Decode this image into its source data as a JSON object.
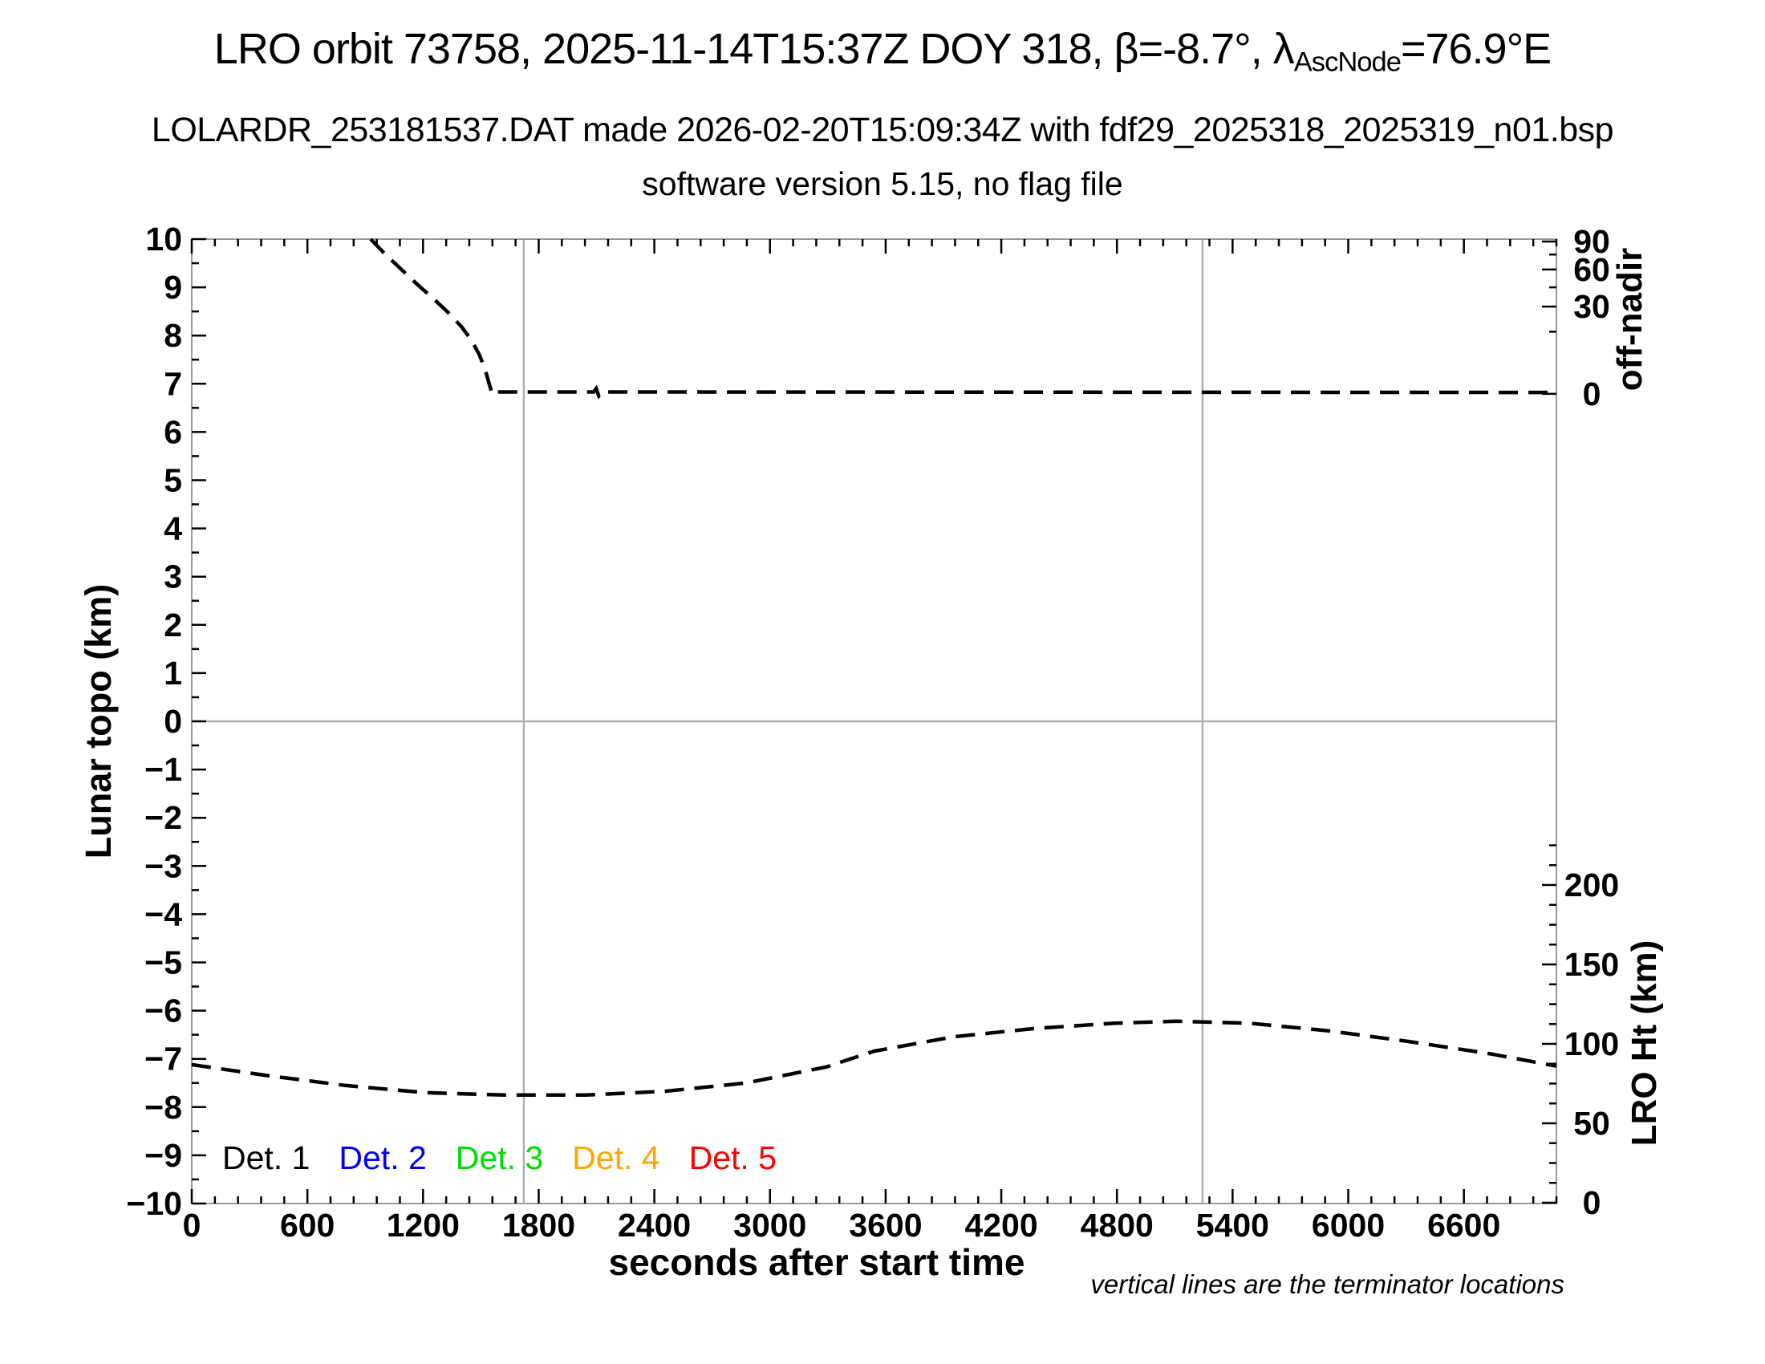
{
  "meta": {
    "title_prefix": "LRO orbit 73758, 2025-11-14T15:37Z DOY 318, β=-8.7°, λ",
    "title_subscript": "AscNode",
    "title_suffix": "=76.9°E",
    "subtitle1": "LOLARDR_253181537.DAT made 2026-02-20T15:09:34Z with fdf29_2025318_2025319_n01.bsp",
    "subtitle2": "software version 5.15, no flag file",
    "footnote": "vertical lines are the terminator locations"
  },
  "legend": {
    "items": [
      {
        "label": "Det. 1",
        "color": "#000000"
      },
      {
        "label": "Det. 2",
        "color": "#0000ff"
      },
      {
        "label": "Det. 3",
        "color": "#00dd00"
      },
      {
        "label": "Det. 4",
        "color": "#ffa500"
      },
      {
        "label": "Det. 5",
        "color": "#ff0000"
      }
    ]
  },
  "chart_data": {
    "type": "line",
    "title": "LRO orbit 73758, 2025-11-14T15:37Z DOY 318, β=-8.7°, λAscNode=76.9°E",
    "subtitle": "LOLARDR_253181537.DAT made 2026-02-20T15:09:34Z with fdf29_2025318_2025319_n01.bsp",
    "subtitle2": "software version 5.15, no flag file",
    "grid": "off",
    "line_color": "#000000",
    "line_style": "dashed",
    "feature_line_color": "#b0b0b0",
    "x_axis": {
      "label": "seconds after start time",
      "range": [
        0,
        7080
      ],
      "major_tick_step": 600,
      "minor_tick_step": 120,
      "tick_values": [
        0,
        600,
        1200,
        1800,
        2400,
        3000,
        3600,
        4200,
        4800,
        5400,
        6000,
        6600
      ],
      "tick_labels": [
        "0",
        "600",
        "1200",
        "1800",
        "2400",
        "3000",
        "3600",
        "4200",
        "4800",
        "5400",
        "6000",
        "6600"
      ]
    },
    "y_left": {
      "label": "Lunar topo (km)",
      "range": [
        -10,
        10
      ],
      "major_tick_step": 1,
      "minor_tick_step": 0.5,
      "tick_values": [
        10,
        9,
        8,
        7,
        6,
        5,
        4,
        3,
        2,
        1,
        0,
        -1,
        -2,
        -3,
        -4,
        -5,
        -6,
        -7,
        -8,
        -9,
        -10
      ],
      "tick_labels": [
        "10",
        "9",
        "8",
        "7",
        "6",
        "5",
        "4",
        "3",
        "2",
        "1",
        "0",
        "−1",
        "−2",
        "−3",
        "−4",
        "−5",
        "−6",
        "−7",
        "−8",
        "−9",
        "−10"
      ]
    },
    "y_right_offnadir": {
      "label": "off-nadir",
      "labeled_ticks_deg": [
        90,
        60,
        30,
        0
      ],
      "tick_labels": [
        "90",
        "60",
        "30",
        "0"
      ],
      "tick_map_deg_to_topo": [
        [
          90,
          9.95
        ],
        [
          75,
          9.68
        ],
        [
          60,
          9.37
        ],
        [
          45,
          9.0
        ],
        [
          30,
          8.6
        ],
        [
          15,
          8.08
        ],
        [
          0,
          6.79
        ]
      ]
    },
    "y_right_lroht": {
      "label": "LRO Ht (km)",
      "labeled_ticks_km": [
        200,
        150,
        100,
        50,
        0
      ],
      "tick_labels": [
        "200",
        "150",
        "100",
        "50",
        "0"
      ],
      "topo_at_0km": -9.983,
      "topo_per_km": 0.03294,
      "minor_step_km": 12.5,
      "minor_max_km": 225
    },
    "terminator_lines_sec": [
      1723,
      5244
    ],
    "zero_line_topo": 0,
    "series": [
      {
        "name": "off-nadir angle",
        "axis": "y_right_offnadir",
        "summary": {
          "start_sec": 928,
          "start_deg": 90,
          "reaches_zero_sec": 1555,
          "flat_deg": 0,
          "small_wiggle_sec": 2100
        },
        "points_topo": [
          [
            928,
            10.0
          ],
          [
            1005,
            9.68
          ],
          [
            1085,
            9.38
          ],
          [
            1165,
            9.08
          ],
          [
            1250,
            8.78
          ],
          [
            1330,
            8.48
          ],
          [
            1400,
            8.18
          ],
          [
            1452,
            7.9
          ],
          [
            1492,
            7.6
          ],
          [
            1522,
            7.3
          ],
          [
            1543,
            7.0
          ],
          [
            1556,
            6.83
          ],
          [
            1568,
            6.77
          ],
          [
            1582,
            6.83
          ],
          [
            2085,
            6.83
          ],
          [
            2098,
            6.9
          ],
          [
            2112,
            6.75
          ],
          [
            2128,
            6.83
          ],
          [
            7080,
            6.82
          ]
        ]
      },
      {
        "name": "LRO height",
        "axis": "y_right_lroht",
        "summary": {
          "start_km": 87,
          "min_km": 68,
          "min_sec": 1850,
          "max_km": 114,
          "max_sec": 5110,
          "end_km": 87
        },
        "points_topo": [
          [
            0,
            -7.12
          ],
          [
            380,
            -7.34
          ],
          [
            795,
            -7.55
          ],
          [
            1210,
            -7.7
          ],
          [
            1625,
            -7.75
          ],
          [
            2045,
            -7.75
          ],
          [
            2460,
            -7.67
          ],
          [
            2875,
            -7.5
          ],
          [
            3290,
            -7.17
          ],
          [
            3540,
            -6.84
          ],
          [
            3955,
            -6.54
          ],
          [
            4375,
            -6.37
          ],
          [
            4790,
            -6.26
          ],
          [
            5110,
            -6.22
          ],
          [
            5485,
            -6.26
          ],
          [
            5900,
            -6.42
          ],
          [
            6315,
            -6.64
          ],
          [
            6730,
            -6.89
          ],
          [
            7080,
            -7.15
          ]
        ]
      }
    ]
  }
}
